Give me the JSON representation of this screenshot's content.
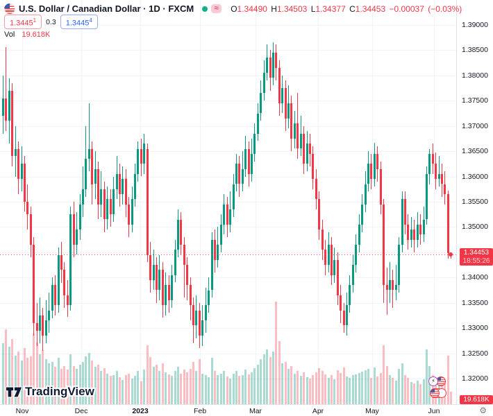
{
  "header": {
    "symbol": "U.S. Dollar / Canadian Dollar",
    "separator": "·",
    "interval": "1D",
    "exchange": "FXCM",
    "ohlc": {
      "o_label": "O",
      "o_value": "1.34490",
      "h_label": "H",
      "h_value": "1.34503",
      "l_label": "L",
      "l_value": "1.34377",
      "c_label": "C",
      "c_value": "1.34453",
      "change": "−0.00037",
      "change_pct": "(−0.03%)"
    },
    "bid": {
      "value": "1.3445",
      "sup": "1"
    },
    "spread": "0.3",
    "ask": {
      "value": "1.3445",
      "sup": "4"
    },
    "volume_row": {
      "label": "Vol",
      "value": "19.618K"
    }
  },
  "price_axis": {
    "labels": [
      "1.39000",
      "1.38500",
      "1.38000",
      "1.37500",
      "1.37000",
      "1.36500",
      "1.36000",
      "1.35500",
      "1.35000",
      "1.34500",
      "1.34000",
      "1.33500",
      "1.33000",
      "1.32500",
      "1.32000"
    ],
    "last_price_label": {
      "price": "1.34453",
      "countdown": "18:55:26"
    },
    "volume_badge": "19.618K"
  },
  "time_axis": {
    "labels": [
      "Nov",
      "Dec",
      "2023",
      "Feb",
      "Mar",
      "Apr",
      "May",
      "Jun"
    ],
    "positions": [
      32,
      117,
      202,
      288,
      368,
      458,
      536,
      625
    ],
    "bold": "2023"
  },
  "watermark": {
    "brand": "TradingView"
  },
  "icons": {
    "gear": "⚙",
    "lightning": "⚡",
    "symbol_flag_mark": "⚑"
  },
  "colors": {
    "up": "#089981",
    "down": "#f23645",
    "vol_up": "rgba(8,153,129,0.35)",
    "vol_down": "rgba(242,54,69,0.33)",
    "accent_blue": "#2962ff",
    "axis_text": "#131722",
    "grid": "#f0f3fa",
    "label_bg": "#f23645",
    "open_dot": "#13b08c"
  },
  "chart_data": {
    "type": "candlestick",
    "title": "U.S. Dollar / Canadian Dollar",
    "interval": "1D",
    "exchange": "FXCM",
    "ylim": [
      1.32,
      1.39
    ],
    "y_tick_step": 0.005,
    "x_axis_months": [
      "Nov",
      "Dec",
      "2023",
      "Feb",
      "Mar",
      "Apr",
      "May",
      "Jun"
    ],
    "grid": true,
    "legend_position": "top-left",
    "last_close": 1.34453,
    "current_volume_k": 19.618,
    "volume_unit": "K",
    "candles_format": [
      "open",
      "high",
      "low",
      "close",
      "volume_k"
    ],
    "candles": [
      [
        1.372,
        1.38,
        1.3685,
        1.3755,
        95
      ],
      [
        1.3755,
        1.3856,
        1.369,
        1.371,
        117
      ],
      [
        1.371,
        1.3795,
        1.3665,
        1.377,
        90
      ],
      [
        1.377,
        1.3785,
        1.362,
        1.364,
        102
      ],
      [
        1.364,
        1.37,
        1.36,
        1.3655,
        76
      ],
      [
        1.3655,
        1.367,
        1.3565,
        1.3595,
        82
      ],
      [
        1.3595,
        1.366,
        1.357,
        1.3625,
        68
      ],
      [
        1.3625,
        1.364,
        1.353,
        1.355,
        88
      ],
      [
        1.355,
        1.3585,
        1.3495,
        1.3525,
        72
      ],
      [
        1.3525,
        1.354,
        1.344,
        1.3465,
        75
      ],
      [
        1.3465,
        1.348,
        1.3285,
        1.331,
        110
      ],
      [
        1.331,
        1.335,
        1.3265,
        1.3295,
        96
      ],
      [
        1.3295,
        1.336,
        1.327,
        1.3325,
        78
      ],
      [
        1.3325,
        1.334,
        1.3255,
        1.3285,
        84
      ],
      [
        1.3285,
        1.3355,
        1.327,
        1.3315,
        70
      ],
      [
        1.3315,
        1.337,
        1.329,
        1.3335,
        64
      ],
      [
        1.3335,
        1.34,
        1.332,
        1.3385,
        66
      ],
      [
        1.3385,
        1.3405,
        1.3325,
        1.3345,
        58
      ],
      [
        1.3345,
        1.346,
        1.333,
        1.3445,
        72
      ],
      [
        1.3445,
        1.347,
        1.339,
        1.3415,
        55
      ],
      [
        1.3415,
        1.343,
        1.334,
        1.3365,
        60
      ],
      [
        1.3365,
        1.3395,
        1.3322,
        1.3345,
        54
      ],
      [
        1.3345,
        1.354,
        1.3335,
        1.3525,
        78
      ],
      [
        1.3525,
        1.355,
        1.344,
        1.3465,
        60
      ],
      [
        1.3465,
        1.353,
        1.3445,
        1.3495,
        55
      ],
      [
        1.3495,
        1.3565,
        1.3475,
        1.3545,
        62
      ],
      [
        1.3545,
        1.362,
        1.352,
        1.3575,
        66
      ],
      [
        1.3575,
        1.37,
        1.356,
        1.3635,
        75
      ],
      [
        1.3635,
        1.3745,
        1.361,
        1.3655,
        80
      ],
      [
        1.3655,
        1.367,
        1.3545,
        1.3585,
        68
      ],
      [
        1.3585,
        1.365,
        1.3555,
        1.3615,
        58
      ],
      [
        1.3615,
        1.363,
        1.3515,
        1.3545,
        62
      ],
      [
        1.3545,
        1.361,
        1.352,
        1.3575,
        52
      ],
      [
        1.3575,
        1.359,
        1.349,
        1.3515,
        56
      ],
      [
        1.3515,
        1.358,
        1.3495,
        1.3555,
        48
      ],
      [
        1.3555,
        1.3575,
        1.35,
        1.3525,
        44
      ],
      [
        1.3525,
        1.36,
        1.351,
        1.3575,
        46
      ],
      [
        1.3575,
        1.364,
        1.3555,
        1.3605,
        52
      ],
      [
        1.3605,
        1.3625,
        1.354,
        1.3565,
        42
      ],
      [
        1.3565,
        1.362,
        1.3545,
        1.3595,
        38
      ],
      [
        1.3595,
        1.3615,
        1.352,
        1.3545,
        45
      ],
      [
        1.3545,
        1.356,
        1.348,
        1.3505,
        48
      ],
      [
        1.3505,
        1.358,
        1.349,
        1.3555,
        40
      ],
      [
        1.3555,
        1.3625,
        1.354,
        1.3605,
        44
      ],
      [
        1.3605,
        1.367,
        1.359,
        1.3655,
        52
      ],
      [
        1.3655,
        1.3675,
        1.36,
        1.3625,
        36
      ],
      [
        1.3625,
        1.3685,
        1.3605,
        1.3665,
        54
      ],
      [
        1.3655,
        1.3665,
        1.343,
        1.3445,
        92
      ],
      [
        1.3445,
        1.347,
        1.337,
        1.3395,
        74
      ],
      [
        1.3395,
        1.3455,
        1.3375,
        1.3425,
        58
      ],
      [
        1.3425,
        1.344,
        1.335,
        1.3375,
        62
      ],
      [
        1.3375,
        1.3445,
        1.3355,
        1.3415,
        52
      ],
      [
        1.3415,
        1.343,
        1.332,
        1.3345,
        64
      ],
      [
        1.3345,
        1.341,
        1.3325,
        1.3385,
        50
      ],
      [
        1.3385,
        1.3405,
        1.333,
        1.3355,
        47
      ],
      [
        1.3355,
        1.3425,
        1.334,
        1.3405,
        44
      ],
      [
        1.3405,
        1.3475,
        1.339,
        1.3455,
        52
      ],
      [
        1.3455,
        1.3535,
        1.344,
        1.3515,
        58
      ],
      [
        1.3515,
        1.353,
        1.3445,
        1.3465,
        48
      ],
      [
        1.3465,
        1.348,
        1.336,
        1.3425,
        54
      ],
      [
        1.3425,
        1.344,
        1.3355,
        1.3385,
        50
      ],
      [
        1.3385,
        1.34,
        1.3315,
        1.3345,
        55
      ],
      [
        1.3345,
        1.336,
        1.327,
        1.3305,
        66
      ],
      [
        1.3305,
        1.3365,
        1.328,
        1.3335,
        52
      ],
      [
        1.3335,
        1.335,
        1.326,
        1.3285,
        70
      ],
      [
        1.3285,
        1.3345,
        1.3265,
        1.3315,
        48
      ],
      [
        1.3315,
        1.338,
        1.329,
        1.3345,
        45
      ],
      [
        1.3345,
        1.34,
        1.333,
        1.3375,
        42
      ],
      [
        1.3375,
        1.349,
        1.336,
        1.3475,
        72
      ],
      [
        1.3475,
        1.3495,
        1.341,
        1.3435,
        52
      ],
      [
        1.3435,
        1.35,
        1.342,
        1.3465,
        46
      ],
      [
        1.3465,
        1.3525,
        1.345,
        1.3505,
        48
      ],
      [
        1.3505,
        1.3565,
        1.3485,
        1.3545,
        52
      ],
      [
        1.3545,
        1.356,
        1.348,
        1.3505,
        43
      ],
      [
        1.3505,
        1.357,
        1.349,
        1.3535,
        40
      ],
      [
        1.3535,
        1.3605,
        1.352,
        1.3585,
        48
      ],
      [
        1.3585,
        1.3645,
        1.357,
        1.3625,
        52
      ],
      [
        1.3625,
        1.364,
        1.356,
        1.3585,
        44
      ],
      [
        1.3585,
        1.365,
        1.357,
        1.3615,
        46
      ],
      [
        1.3615,
        1.368,
        1.36,
        1.3655,
        54
      ],
      [
        1.3655,
        1.367,
        1.358,
        1.3605,
        47
      ],
      [
        1.3605,
        1.3675,
        1.359,
        1.3645,
        50
      ],
      [
        1.3645,
        1.3705,
        1.363,
        1.3685,
        56
      ],
      [
        1.3685,
        1.3745,
        1.367,
        1.3725,
        62
      ],
      [
        1.3725,
        1.379,
        1.371,
        1.3765,
        70
      ],
      [
        1.3765,
        1.383,
        1.375,
        1.3805,
        78
      ],
      [
        1.3805,
        1.3861,
        1.379,
        1.3835,
        85
      ],
      [
        1.3835,
        1.385,
        1.377,
        1.3795,
        74
      ],
      [
        1.3795,
        1.3866,
        1.378,
        1.3845,
        82
      ],
      [
        1.3845,
        1.3862,
        1.379,
        1.3815,
        160
      ],
      [
        1.3815,
        1.383,
        1.372,
        1.3745,
        98
      ],
      [
        1.3745,
        1.38,
        1.3725,
        1.3775,
        64
      ],
      [
        1.3775,
        1.379,
        1.369,
        1.3715,
        66
      ],
      [
        1.3715,
        1.378,
        1.3695,
        1.3745,
        55
      ],
      [
        1.3745,
        1.376,
        1.365,
        1.3675,
        60
      ],
      [
        1.3675,
        1.373,
        1.3655,
        1.3705,
        48
      ],
      [
        1.3705,
        1.3765,
        1.3635,
        1.3655,
        52
      ],
      [
        1.3655,
        1.372,
        1.364,
        1.3685,
        44
      ],
      [
        1.3685,
        1.37,
        1.3605,
        1.3625,
        50
      ],
      [
        1.3625,
        1.369,
        1.361,
        1.3665,
        42
      ],
      [
        1.3665,
        1.3685,
        1.362,
        1.3645,
        40
      ],
      [
        1.3645,
        1.366,
        1.3575,
        1.3595,
        46
      ],
      [
        1.3595,
        1.3615,
        1.3535,
        1.3555,
        50
      ],
      [
        1.3555,
        1.357,
        1.3475,
        1.3495,
        56
      ],
      [
        1.3495,
        1.3515,
        1.3435,
        1.3455,
        52
      ],
      [
        1.3455,
        1.3475,
        1.3405,
        1.3425,
        47
      ],
      [
        1.3425,
        1.349,
        1.341,
        1.3465,
        41
      ],
      [
        1.3465,
        1.348,
        1.3385,
        1.3405,
        45
      ],
      [
        1.3405,
        1.346,
        1.339,
        1.3435,
        39
      ],
      [
        1.3435,
        1.345,
        1.3345,
        1.3365,
        53
      ],
      [
        1.3365,
        1.3385,
        1.331,
        1.3335,
        49
      ],
      [
        1.3335,
        1.335,
        1.329,
        1.3305,
        57
      ],
      [
        1.3305,
        1.337,
        1.3285,
        1.3345,
        43
      ],
      [
        1.3345,
        1.3405,
        1.333,
        1.3385,
        41
      ],
      [
        1.3385,
        1.3445,
        1.337,
        1.3425,
        45
      ],
      [
        1.3425,
        1.3485,
        1.341,
        1.3465,
        47
      ],
      [
        1.3465,
        1.3525,
        1.345,
        1.3505,
        49
      ],
      [
        1.3505,
        1.3565,
        1.349,
        1.3545,
        51
      ],
      [
        1.3545,
        1.361,
        1.353,
        1.3585,
        53
      ],
      [
        1.3585,
        1.365,
        1.357,
        1.3625,
        55
      ],
      [
        1.3625,
        1.3645,
        1.3575,
        1.3595,
        41
      ],
      [
        1.3595,
        1.3667,
        1.358,
        1.3645,
        57
      ],
      [
        1.3645,
        1.366,
        1.359,
        1.3615,
        43
      ],
      [
        1.3615,
        1.363,
        1.3525,
        1.3545,
        49
      ],
      [
        1.3545,
        1.3555,
        1.335,
        1.3385,
        92
      ],
      [
        1.3385,
        1.342,
        1.3326,
        1.3375,
        60
      ],
      [
        1.3375,
        1.343,
        1.335,
        1.3395,
        45
      ],
      [
        1.3395,
        1.3415,
        1.334,
        1.3375,
        41
      ],
      [
        1.3375,
        1.3425,
        1.3355,
        1.3385,
        37
      ],
      [
        1.3385,
        1.348,
        1.337,
        1.3465,
        55
      ],
      [
        1.3465,
        1.357,
        1.345,
        1.3555,
        64
      ],
      [
        1.3555,
        1.357,
        1.3485,
        1.3505,
        45
      ],
      [
        1.3505,
        1.3525,
        1.3455,
        1.3475,
        41
      ],
      [
        1.3475,
        1.352,
        1.346,
        1.3495,
        35
      ],
      [
        1.3495,
        1.3515,
        1.345,
        1.3475,
        33
      ],
      [
        1.3475,
        1.353,
        1.346,
        1.3505,
        37
      ],
      [
        1.3505,
        1.3525,
        1.3465,
        1.3485,
        31
      ],
      [
        1.3485,
        1.354,
        1.347,
        1.3515,
        39
      ],
      [
        1.3515,
        1.362,
        1.3505,
        1.3605,
        85
      ],
      [
        1.3605,
        1.3655,
        1.3585,
        1.3645,
        60
      ],
      [
        1.3645,
        1.3665,
        1.3605,
        1.3625,
        45
      ],
      [
        1.3625,
        1.3648,
        1.3575,
        1.3595,
        41
      ],
      [
        1.3595,
        1.364,
        1.358,
        1.3605,
        35
      ],
      [
        1.3605,
        1.3625,
        1.356,
        1.3585,
        39
      ],
      [
        1.3585,
        1.361,
        1.3545,
        1.3565,
        37
      ],
      [
        1.3565,
        1.3572,
        1.3437,
        1.3449,
        76
      ],
      [
        1.3449,
        1.34503,
        1.34377,
        1.34453,
        19.618
      ]
    ]
  }
}
